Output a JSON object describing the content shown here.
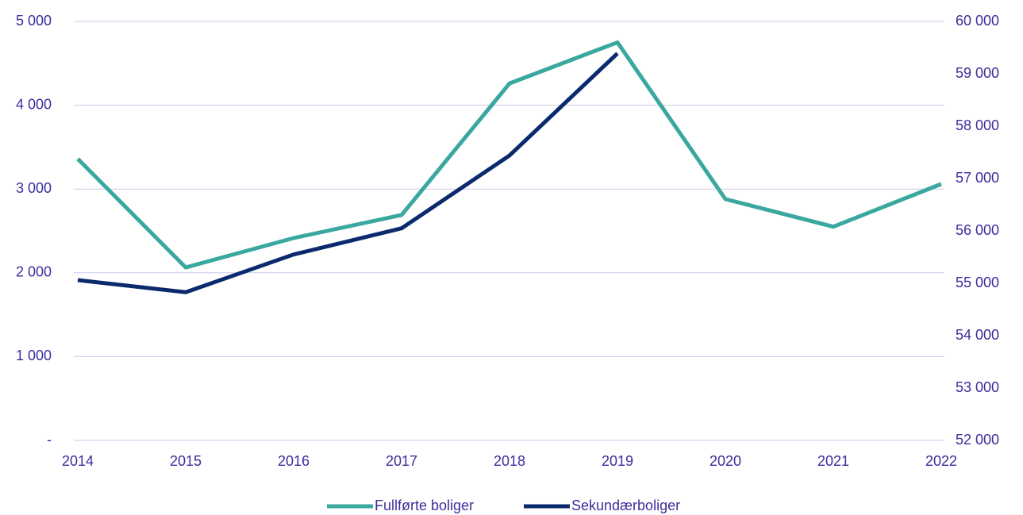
{
  "chart_data": {
    "type": "line",
    "categories": [
      "2014",
      "2015",
      "2016",
      "2017",
      "2018",
      "2019",
      "2020",
      "2021",
      "2022"
    ],
    "series": [
      {
        "name": "Fullførte boliger",
        "color": "#3aa89f",
        "values": [
          3360,
          2064,
          2415,
          2690,
          4260,
          4750,
          2880,
          2550,
          3060
        ]
      },
      {
        "name": "Sekundærboliger",
        "color": "#0b2a6e",
        "axis": "y2",
        "values": [
          55060,
          54830,
          55550,
          56050,
          57440,
          59390,
          null,
          null,
          null
        ]
      }
    ],
    "ylim": [
      0,
      5000
    ],
    "yticks": [
      {
        "value": 0,
        "label": "-"
      },
      {
        "value": 1000,
        "label": "1 000"
      },
      {
        "value": 2000,
        "label": "2 000"
      },
      {
        "value": 3000,
        "label": "3 000"
      },
      {
        "value": 4000,
        "label": "4 000"
      },
      {
        "value": 5000,
        "label": "5 000"
      }
    ],
    "y2lim": [
      52000,
      60000
    ],
    "y2ticks": [
      {
        "value": 52000,
        "label": "52 000"
      },
      {
        "value": 53000,
        "label": "53 000"
      },
      {
        "value": 54000,
        "label": "54 000"
      },
      {
        "value": 55000,
        "label": "55 000"
      },
      {
        "value": 56000,
        "label": "56 000"
      },
      {
        "value": 57000,
        "label": "57 000"
      },
      {
        "value": 58000,
        "label": "58 000"
      },
      {
        "value": 59000,
        "label": "59 000"
      },
      {
        "value": 60000,
        "label": "60 000"
      }
    ],
    "grid": true,
    "legend": "bottom"
  }
}
